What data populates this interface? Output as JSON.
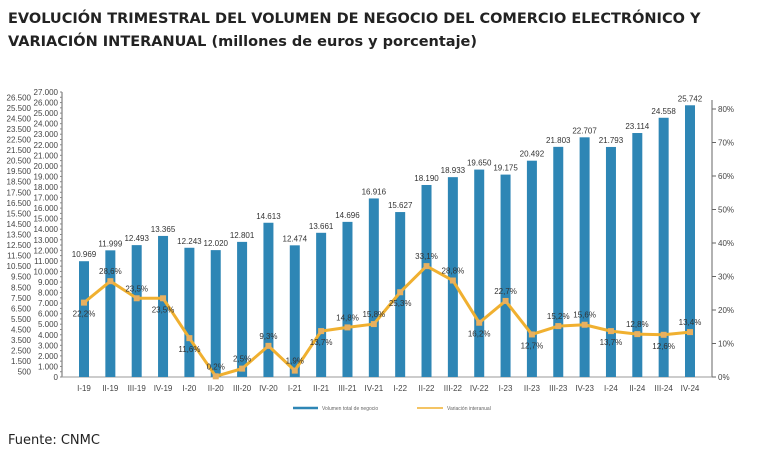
{
  "title": "EVOLUCIÓN TRIMESTRAL DEL VOLUMEN DE NEGOCIO DEL COMERCIO ELECTRÓNICO Y VARIACIÓN INTERANUAL (millones de euros y porcentaje)",
  "source": "Fuente: CNMC",
  "colors": {
    "bars": "#2e86b5",
    "line": "#f0b030"
  },
  "chart_data": {
    "type": "bar+line",
    "categories": [
      "I-19",
      "II-19",
      "III-19",
      "IV-19",
      "I-20",
      "II-20",
      "III-20",
      "IV-20",
      "I-21",
      "II-21",
      "III-21",
      "IV-21",
      "I-22",
      "II-22",
      "III-22",
      "IV-22",
      "I-23",
      "II-23",
      "III-23",
      "IV-23",
      "I-24",
      "II-24",
      "III-24",
      "IV-24"
    ],
    "series": [
      {
        "name": "Volumen total de negocio",
        "type": "bar",
        "axis": "left",
        "values": [
          10969,
          11999,
          12493,
          13365,
          12243,
          12020,
          12801,
          14613,
          12474,
          13661,
          14696,
          16916,
          15627,
          18190,
          18933,
          19650,
          19175,
          20492,
          21803,
          22707,
          21793,
          23114,
          24558,
          25742
        ],
        "labels": [
          "10.969",
          "11.999",
          "12.493",
          "13.365",
          "12.243",
          "12.020",
          "12.801",
          "14.613",
          "12.474",
          "13.661",
          "14.696",
          "16.916",
          "15.627",
          "18.190",
          "18.933",
          "19.650",
          "19.175",
          "20.492",
          "21.803",
          "22.707",
          "21.793",
          "23.114",
          "24.558",
          "25.742"
        ]
      },
      {
        "name": "Variación interanual",
        "type": "line",
        "axis": "right",
        "values": [
          22.2,
          28.6,
          23.5,
          23.5,
          11.6,
          0.2,
          2.5,
          9.3,
          1.9,
          13.7,
          14.8,
          15.8,
          25.3,
          33.1,
          28.8,
          16.2,
          22.7,
          12.7,
          15.2,
          15.6,
          13.7,
          12.8,
          12.6,
          13.4
        ],
        "labels": [
          "22,2%",
          "28,6%",
          "23,5%",
          "23,5%",
          "11,6%",
          "0,2%",
          "2,5%",
          "9,3%",
          "1,9%",
          "13,7%",
          "14,8%",
          "15,8%",
          "25,3%",
          "33,1%",
          "28,8%",
          "16,2%",
          "22,7%",
          "12,7%",
          "15,2%",
          "15,6%",
          "13,7%",
          "12,8%",
          "12,6%",
          "13,4%"
        ]
      }
    ],
    "y_left": {
      "range": [
        0,
        27000
      ],
      "step": 500
    },
    "y_right": {
      "range": [
        0,
        80
      ],
      "ticks": [
        "0%",
        "10%",
        "20%",
        "30%",
        "40%",
        "50%",
        "60%",
        "70%",
        "80%"
      ]
    },
    "grid": false,
    "legend": "bottom"
  }
}
